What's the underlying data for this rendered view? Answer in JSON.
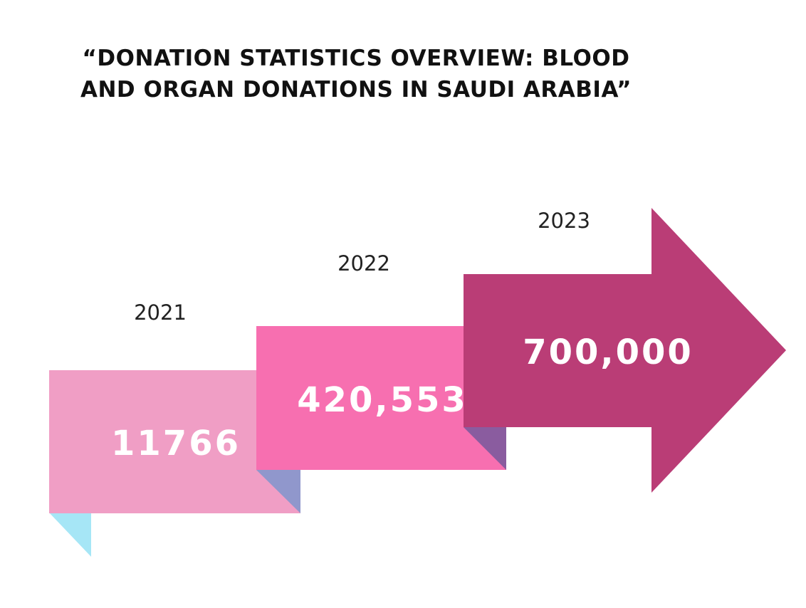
{
  "title": {
    "line1": "“DONATION STATISTICS OVERVIEW: BLOOD",
    "line2": "AND ORGAN DONATIONS IN SAUDI ARABIA”"
  },
  "steps": [
    {
      "year": "2021",
      "value": "11766",
      "color": "#f09ec5",
      "fold_color": "#a6e6f6"
    },
    {
      "year": "2022",
      "value": "420,553",
      "color": "#f76fb0",
      "fold_color": "#9097cc"
    },
    {
      "year": "2023",
      "value": "700,000",
      "color": "#ba3d76",
      "fold_color": "#8a5c9f"
    }
  ]
}
